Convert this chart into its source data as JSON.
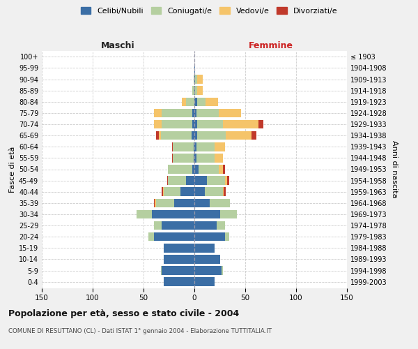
{
  "age_groups": [
    "0-4",
    "5-9",
    "10-14",
    "15-19",
    "20-24",
    "25-29",
    "30-34",
    "35-39",
    "40-44",
    "45-49",
    "50-54",
    "55-59",
    "60-64",
    "65-69",
    "70-74",
    "75-79",
    "80-84",
    "85-89",
    "90-94",
    "95-99",
    "100+"
  ],
  "birth_years": [
    "1999-2003",
    "1994-1998",
    "1989-1993",
    "1984-1988",
    "1979-1983",
    "1974-1978",
    "1969-1973",
    "1964-1968",
    "1959-1963",
    "1954-1958",
    "1949-1953",
    "1944-1948",
    "1939-1943",
    "1934-1938",
    "1929-1933",
    "1924-1928",
    "1919-1923",
    "1914-1918",
    "1909-1913",
    "1904-1908",
    "≤ 1903"
  ],
  "male": {
    "celibi": [
      30,
      32,
      30,
      30,
      40,
      32,
      42,
      20,
      14,
      8,
      2,
      1,
      1,
      3,
      2,
      2,
      0,
      0,
      0,
      0,
      0
    ],
    "coniugati": [
      0,
      1,
      0,
      0,
      5,
      8,
      15,
      18,
      16,
      18,
      24,
      20,
      20,
      30,
      30,
      30,
      8,
      2,
      1,
      0,
      0
    ],
    "vedovi": [
      0,
      0,
      0,
      0,
      0,
      0,
      0,
      1,
      1,
      0,
      0,
      0,
      0,
      2,
      8,
      8,
      4,
      0,
      0,
      0,
      0
    ],
    "divorziati": [
      0,
      0,
      0,
      0,
      0,
      0,
      0,
      1,
      1,
      1,
      0,
      1,
      1,
      3,
      0,
      0,
      0,
      0,
      0,
      0,
      0
    ]
  },
  "female": {
    "nubili": [
      20,
      27,
      25,
      20,
      30,
      22,
      25,
      15,
      10,
      12,
      4,
      2,
      2,
      3,
      3,
      2,
      3,
      1,
      1,
      1,
      0
    ],
    "coniugate": [
      0,
      1,
      0,
      0,
      4,
      8,
      17,
      20,
      18,
      18,
      20,
      18,
      18,
      28,
      25,
      22,
      8,
      2,
      2,
      0,
      0
    ],
    "vedove": [
      0,
      0,
      0,
      0,
      0,
      0,
      0,
      0,
      1,
      2,
      4,
      8,
      10,
      25,
      35,
      22,
      12,
      5,
      5,
      0,
      0
    ],
    "divorziate": [
      0,
      0,
      0,
      0,
      0,
      0,
      0,
      0,
      2,
      2,
      2,
      0,
      0,
      5,
      5,
      0,
      0,
      0,
      0,
      0,
      0
    ]
  },
  "colors": {
    "celibi": "#3b6ea5",
    "coniugati": "#b5cfa0",
    "vedovi": "#f5c46a",
    "divorziati": "#c0392b"
  },
  "xlim": 150,
  "title": "Popolazione per età, sesso e stato civile - 2004",
  "subtitle": "COMUNE DI RESUTTANO (CL) - Dati ISTAT 1° gennaio 2004 - Elaborazione TUTTITALIA.IT",
  "ylabel_left": "Fasce di età",
  "ylabel_right": "Anni di nascita",
  "xlabel_left": "Maschi",
  "xlabel_right": "Femmine",
  "bg_color": "#f0f0f0",
  "plot_bg_color": "#ffffff",
  "legend_labels": [
    "Celibi/Nubili",
    "Coniugati/e",
    "Vedovi/e",
    "Divorziati/e"
  ]
}
